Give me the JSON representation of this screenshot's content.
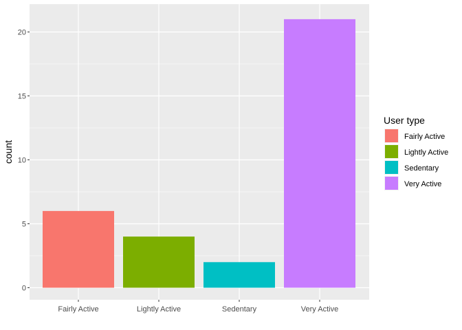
{
  "chart_data": {
    "type": "bar",
    "categories": [
      "Fairly Active",
      "Lightly Active",
      "Sedentary",
      "Very Active"
    ],
    "values": [
      6,
      4,
      2,
      21
    ],
    "colors": [
      "#F8766D",
      "#7CAE00",
      "#00BFC4",
      "#C77CFF"
    ],
    "xlabel": "",
    "ylabel": "count",
    "ylim": [
      0,
      22.05
    ],
    "yticks": [
      0,
      5,
      10,
      15,
      20
    ],
    "grid": true,
    "panel_background": "#EBEBEB",
    "grid_color": "#FFFFFF",
    "legend": {
      "title": "User type",
      "placement": "right",
      "entries": [
        "Fairly Active",
        "Lightly Active",
        "Sedentary",
        "Very Active"
      ]
    }
  }
}
